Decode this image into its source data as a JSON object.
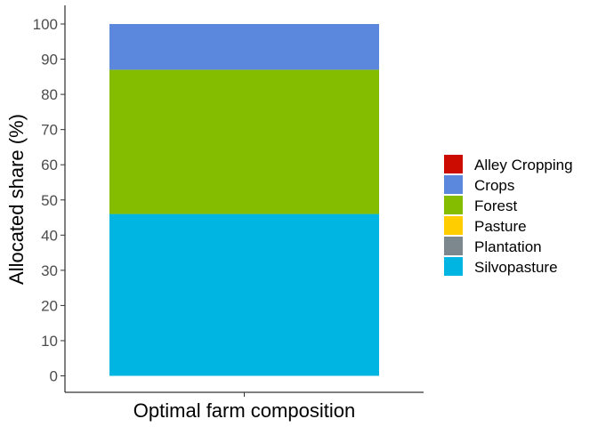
{
  "chart_data": {
    "type": "bar",
    "stacked": true,
    "categories": [
      "Optimal farm composition"
    ],
    "xlabel": "Optimal farm composition",
    "ylabel": "Allocated share (%)",
    "ylim": [
      0,
      100
    ],
    "yticks": [
      0,
      10,
      20,
      30,
      40,
      50,
      60,
      70,
      80,
      90,
      100
    ],
    "grid": false,
    "legend_position": "right",
    "stack_order": [
      "Silvopasture",
      "Forest",
      "Crops"
    ],
    "series": [
      {
        "name": "Alley Cropping",
        "color": "#cc0c00",
        "values": [
          0
        ]
      },
      {
        "name": "Crops",
        "color": "#5b88dc",
        "values": [
          13
        ]
      },
      {
        "name": "Forest",
        "color": "#84bd00",
        "values": [
          41
        ]
      },
      {
        "name": "Pasture",
        "color": "#ffcd00",
        "values": [
          0
        ]
      },
      {
        "name": "Plantation",
        "color": "#7c878e",
        "values": [
          0
        ]
      },
      {
        "name": "Silvopasture",
        "color": "#00b5e2",
        "values": [
          46
        ]
      }
    ]
  }
}
